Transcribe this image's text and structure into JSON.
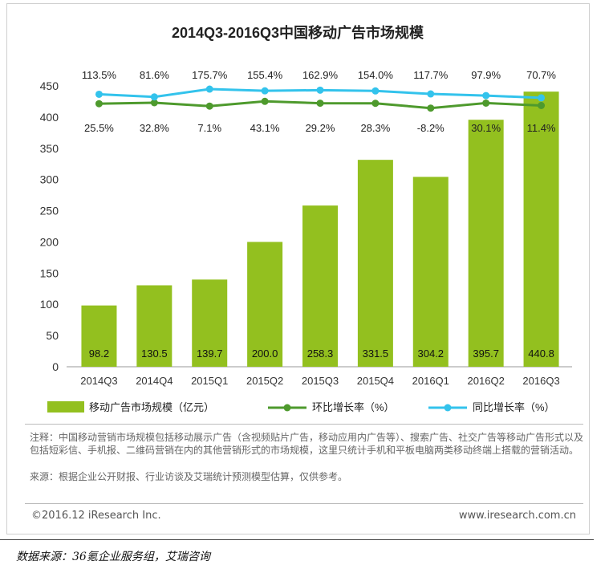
{
  "chart_data": {
    "type": "bar",
    "title": "2014Q3-2016Q3中国移动广告市场规模",
    "categories": [
      "2014Q3",
      "2014Q4",
      "2015Q1",
      "2015Q2",
      "2015Q3",
      "2015Q4",
      "2016Q1",
      "2016Q2",
      "2016Q3"
    ],
    "series": [
      {
        "name": "移动广告市场规模（亿元）",
        "kind": "bar",
        "color": "#93c01f",
        "values": [
          98.2,
          130.5,
          139.7,
          200.0,
          258.3,
          331.5,
          304.2,
          395.7,
          440.8
        ],
        "labels": [
          "98.2",
          "130.5",
          "139.7",
          "200.0",
          "258.3",
          "331.5",
          "304.2",
          "395.7",
          "440.8"
        ]
      },
      {
        "name": "环比增长率（%）",
        "kind": "line",
        "color": "#4e9a2d",
        "values": [
          25.5,
          32.8,
          7.1,
          43.1,
          29.2,
          28.3,
          -8.2,
          30.1,
          11.4
        ],
        "labels": [
          "25.5%",
          "32.8%",
          "7.1%",
          "43.1%",
          "29.2%",
          "28.3%",
          "-8.2%",
          "30.1%",
          "11.4%"
        ]
      },
      {
        "name": "同比增长率（%）",
        "kind": "line",
        "color": "#33c3ec",
        "values": [
          113.5,
          81.6,
          175.7,
          155.4,
          162.9,
          154.0,
          117.7,
          97.9,
          70.7
        ],
        "labels": [
          "113.5%",
          "81.6%",
          "175.7%",
          "155.4%",
          "162.9%",
          "154.0%",
          "117.7%",
          "97.9%",
          "70.7%"
        ]
      }
    ],
    "yticks": [
      "0",
      "50",
      "100",
      "150",
      "200",
      "250",
      "300",
      "350",
      "400",
      "450"
    ],
    "ylim": [
      0,
      450
    ],
    "legend_position": "bottom",
    "grid": false
  },
  "notes": {
    "note": "注释：中国移动营销市场规模包括移动展示广告（含视频贴片广告，移动应用内广告等）、搜索广告、社交广告等移动广告形式以及包括短彩信、手机报、二维码营销在内的其他营销形式的市场规模，这里只统计手机和平板电脑两类移动终端上搭载的营销活动。",
    "source": "来源：根据企业公开财报、行业访谈及艾瑞统计预测模型估算，仅供参考。"
  },
  "footer": {
    "copyright": "©2016.12 iResearch Inc.",
    "website": "www.iresearch.com.cn"
  },
  "data_source": "数据来源：36氪企业服务组，艾瑞咨询"
}
